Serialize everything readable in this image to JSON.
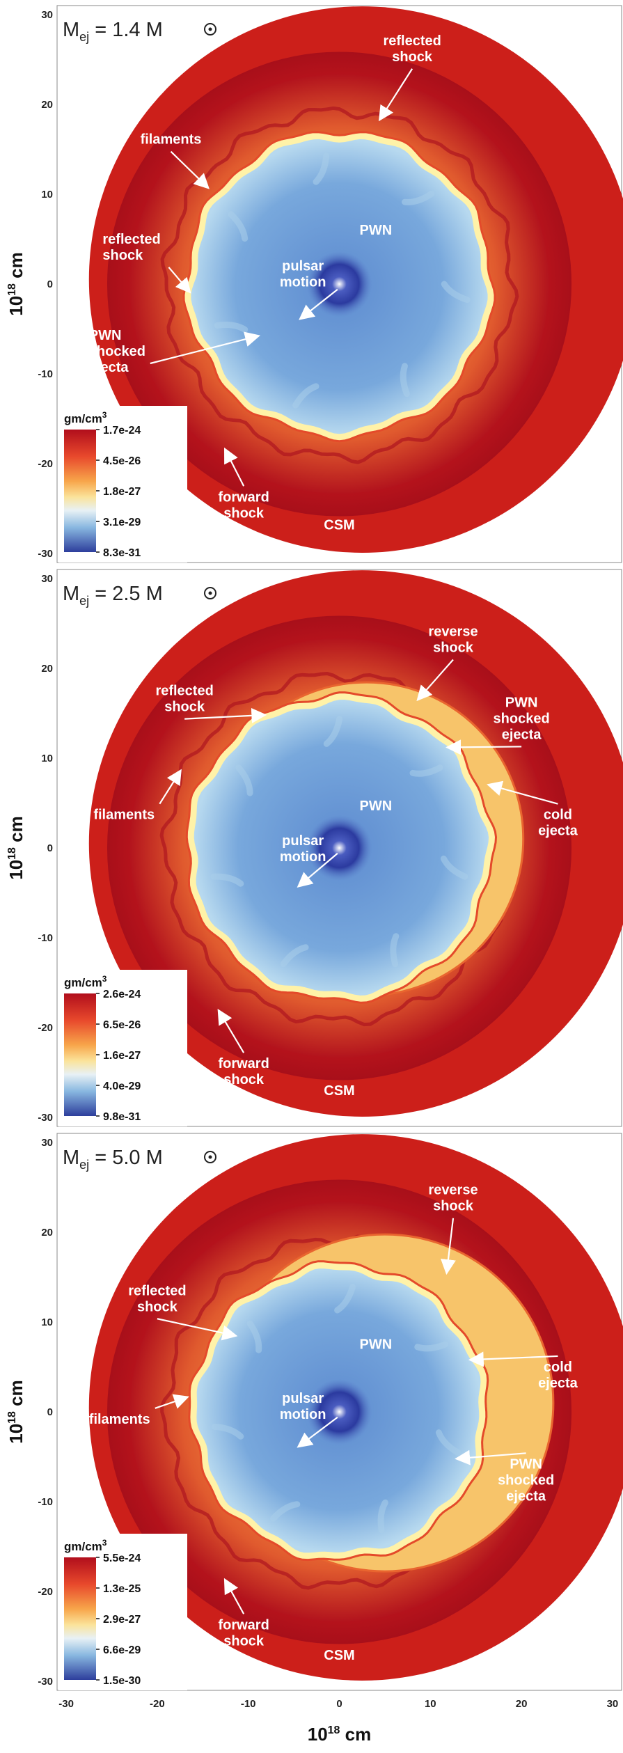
{
  "panels": [
    {
      "title_prefix": "M",
      "title_sub": "ej",
      "title_value": " = 1.4 M",
      "colorbar": {
        "unit": "gm/cm",
        "unit_sup": "3",
        "ticks": [
          "1.7e-24",
          "4.5e-26",
          "1.8e-27",
          "3.1e-29",
          "8.3e-31"
        ]
      },
      "annotations": [
        [
          "reflected",
          "shock"
        ],
        [
          "filaments"
        ],
        [
          "reflected",
          "shock"
        ],
        [
          "PWN"
        ],
        [
          "pulsar",
          "motion"
        ],
        [
          "PWN",
          "shocked",
          "ejecta"
        ],
        [
          "forward",
          "shock"
        ],
        [
          "CSM"
        ]
      ]
    },
    {
      "title_prefix": "M",
      "title_sub": "ej",
      "title_value": " = 2.5 M",
      "colorbar": {
        "unit": "gm/cm",
        "unit_sup": "3",
        "ticks": [
          "2.6e-24",
          "6.5e-26",
          "1.6e-27",
          "4.0e-29",
          "9.8e-31"
        ]
      },
      "annotations": [
        [
          "reverse",
          "shock"
        ],
        [
          "reflected",
          "shock"
        ],
        [
          "PWN",
          "shocked",
          "ejecta"
        ],
        [
          "filaments"
        ],
        [
          "PWN"
        ],
        [
          "cold",
          "ejecta"
        ],
        [
          "pulsar",
          "motion"
        ],
        [
          "forward",
          "shock"
        ],
        [
          "CSM"
        ]
      ]
    },
    {
      "title_prefix": "M",
      "title_sub": "ej",
      "title_value": " = 5.0 M",
      "colorbar": {
        "unit": "gm/cm",
        "unit_sup": "3",
        "ticks": [
          "5.5e-24",
          "1.3e-25",
          "2.9e-27",
          "6.6e-29",
          "1.5e-30"
        ]
      },
      "annotations": [
        [
          "reverse",
          "shock"
        ],
        [
          "reflected",
          "shock"
        ],
        [
          "PWN"
        ],
        [
          "cold",
          "ejecta"
        ],
        [
          "pulsar",
          "motion"
        ],
        [
          "filaments"
        ],
        [
          "PWN",
          "shocked",
          "ejecta"
        ],
        [
          "forward",
          "shock"
        ],
        [
          "CSM"
        ]
      ]
    }
  ],
  "y_ticks": [
    "30",
    "20",
    "10",
    "0",
    "-10",
    "-20",
    "-30"
  ],
  "x_ticks": [
    "-30",
    "-20",
    "-10",
    "0",
    "10",
    "20",
    "30"
  ],
  "y_label_base": "10",
  "y_label_exp": "18",
  "y_label_unit": " cm",
  "x_label_base": "10",
  "x_label_exp": "18",
  "x_label_unit": " cm",
  "colors": {
    "csm": "#cc1f1a",
    "ejecta_outer": "#b5121c",
    "shocked_ejecta": "#f08a3e",
    "shell_rim": "#fff2a8",
    "cold_ejecta": "#f7c46a",
    "pwn": "#6f9fd8",
    "pwn_light": "#a9cdea",
    "pulsar_core": "#2a3a9e"
  }
}
